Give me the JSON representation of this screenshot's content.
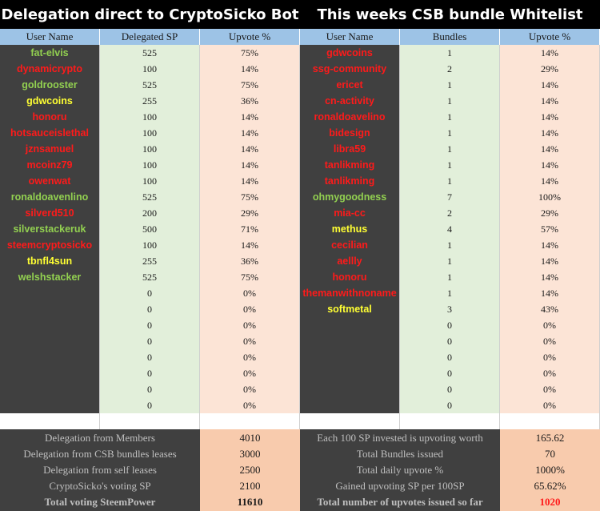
{
  "left_title": "Delegation direct to CryptoSicko Bot",
  "right_title": "This weeks CSB bundle Whitelist",
  "left_headers": [
    "User Name",
    "Delegated SP",
    "Upvote %"
  ],
  "right_headers": [
    "User Name",
    "Bundles",
    "Upvote %"
  ],
  "colors": {
    "green": "#92d050",
    "red": "#ff1a1a",
    "yellow": "#ffff33",
    "header_bg": "#9dc3e6",
    "dark_bg": "#404040",
    "light_green": "#e2efda",
    "light_pink": "#fce4d6",
    "peach": "#f8cbad"
  },
  "left_rows": [
    {
      "name": "fat-elvis",
      "color": "green",
      "sp": "525",
      "upvote": "75%"
    },
    {
      "name": "dynamicrypto",
      "color": "red",
      "sp": "100",
      "upvote": "14%"
    },
    {
      "name": "goldrooster",
      "color": "green",
      "sp": "525",
      "upvote": "75%"
    },
    {
      "name": "gdwcoins",
      "color": "yellow",
      "sp": "255",
      "upvote": "36%"
    },
    {
      "name": "honoru",
      "color": "red",
      "sp": "100",
      "upvote": "14%"
    },
    {
      "name": "hotsauceislethal",
      "color": "red",
      "sp": "100",
      "upvote": "14%"
    },
    {
      "name": "jznsamuel",
      "color": "red",
      "sp": "100",
      "upvote": "14%"
    },
    {
      "name": "mcoinz79",
      "color": "red",
      "sp": "100",
      "upvote": "14%"
    },
    {
      "name": "owenwat",
      "color": "red",
      "sp": "100",
      "upvote": "14%"
    },
    {
      "name": "ronaldoavenlino",
      "color": "green",
      "sp": "525",
      "upvote": "75%"
    },
    {
      "name": "silverd510",
      "color": "red",
      "sp": "200",
      "upvote": "29%"
    },
    {
      "name": "silverstackeruk",
      "color": "green",
      "sp": "500",
      "upvote": "71%"
    },
    {
      "name": "steemcryptosicko",
      "color": "red",
      "sp": "100",
      "upvote": "14%"
    },
    {
      "name": "tbnfl4sun",
      "color": "yellow",
      "sp": "255",
      "upvote": "36%"
    },
    {
      "name": "welshstacker",
      "color": "green",
      "sp": "525",
      "upvote": "75%"
    },
    {
      "name": "",
      "color": "green",
      "sp": "0",
      "upvote": "0%"
    },
    {
      "name": "",
      "color": "green",
      "sp": "0",
      "upvote": "0%"
    },
    {
      "name": "",
      "color": "green",
      "sp": "0",
      "upvote": "0%"
    },
    {
      "name": "",
      "color": "green",
      "sp": "0",
      "upvote": "0%"
    },
    {
      "name": "",
      "color": "green",
      "sp": "0",
      "upvote": "0%"
    },
    {
      "name": "",
      "color": "green",
      "sp": "0",
      "upvote": "0%"
    },
    {
      "name": "",
      "color": "green",
      "sp": "0",
      "upvote": "0%"
    },
    {
      "name": "",
      "color": "green",
      "sp": "0",
      "upvote": "0%"
    },
    {
      "name": "",
      "color": "green",
      "sp": "",
      "upvote": ""
    }
  ],
  "right_rows": [
    {
      "name": "gdwcoins",
      "color": "red",
      "bundles": "1",
      "upvote": "14%"
    },
    {
      "name": "ssg-community",
      "color": "red",
      "bundles": "2",
      "upvote": "29%"
    },
    {
      "name": "ericet",
      "color": "red",
      "bundles": "1",
      "upvote": "14%"
    },
    {
      "name": "cn-activity",
      "color": "red",
      "bundles": "1",
      "upvote": "14%"
    },
    {
      "name": "ronaldoavelino",
      "color": "red",
      "bundles": "1",
      "upvote": "14%"
    },
    {
      "name": "bidesign",
      "color": "red",
      "bundles": "1",
      "upvote": "14%"
    },
    {
      "name": "libra59",
      "color": "red",
      "bundles": "1",
      "upvote": "14%"
    },
    {
      "name": "tanlikming",
      "color": "red",
      "bundles": "1",
      "upvote": "14%"
    },
    {
      "name": "tanlikming",
      "color": "red",
      "bundles": "1",
      "upvote": "14%"
    },
    {
      "name": "ohmygoodness",
      "color": "green",
      "bundles": "7",
      "upvote": "100%"
    },
    {
      "name": "mia-cc",
      "color": "red",
      "bundles": "2",
      "upvote": "29%"
    },
    {
      "name": "methus",
      "color": "yellow",
      "bundles": "4",
      "upvote": "57%"
    },
    {
      "name": "cecilian",
      "color": "red",
      "bundles": "1",
      "upvote": "14%"
    },
    {
      "name": "aellly",
      "color": "red",
      "bundles": "1",
      "upvote": "14%"
    },
    {
      "name": "honoru",
      "color": "red",
      "bundles": "1",
      "upvote": "14%"
    },
    {
      "name": "themanwithnoname",
      "color": "red",
      "bundles": "1",
      "upvote": "14%"
    },
    {
      "name": "softmetal",
      "color": "yellow",
      "bundles": "3",
      "upvote": "43%"
    },
    {
      "name": "",
      "color": "green",
      "bundles": "0",
      "upvote": "0%"
    },
    {
      "name": "",
      "color": "green",
      "bundles": "0",
      "upvote": "0%"
    },
    {
      "name": "",
      "color": "green",
      "bundles": "0",
      "upvote": "0%"
    },
    {
      "name": "",
      "color": "green",
      "bundles": "0",
      "upvote": "0%"
    },
    {
      "name": "",
      "color": "green",
      "bundles": "0",
      "upvote": "0%"
    },
    {
      "name": "",
      "color": "green",
      "bundles": "0",
      "upvote": "0%"
    },
    {
      "name": "",
      "color": "green",
      "bundles": "",
      "upvote": ""
    }
  ],
  "left_summary": [
    {
      "label": "Delegation from Members",
      "value": "4010",
      "bold": false,
      "value_color": "#1a1a1a"
    },
    {
      "label": "Delegation from CSB bundles leases",
      "value": "3000",
      "bold": false,
      "value_color": "#1a1a1a"
    },
    {
      "label": "Delegation from self leases",
      "value": "2500",
      "bold": false,
      "value_color": "#1a1a1a"
    },
    {
      "label": "CryptoSicko's voting SP",
      "value": "2100",
      "bold": false,
      "value_color": "#1a1a1a"
    },
    {
      "label": "Total voting SteemPower",
      "value": "11610",
      "bold": true,
      "value_color": "#1a1a1a"
    }
  ],
  "right_summary": [
    {
      "label": "Each 100 SP invested is upvoting worth",
      "value": "165.62",
      "bold": false,
      "value_color": "#1a1a1a"
    },
    {
      "label": "Total Bundles issued",
      "value": "70",
      "bold": false,
      "value_color": "#1a1a1a"
    },
    {
      "label": "Total daily upvote %",
      "value": "1000%",
      "bold": false,
      "value_color": "#1a1a1a"
    },
    {
      "label": "Gained upvoting SP per 100SP",
      "value": "65.62%",
      "bold": false,
      "value_color": "#1a1a1a"
    },
    {
      "label": "Total number of upvotes issued so far",
      "value": "1020",
      "bold": true,
      "value_color": "#ff1a1a"
    }
  ]
}
